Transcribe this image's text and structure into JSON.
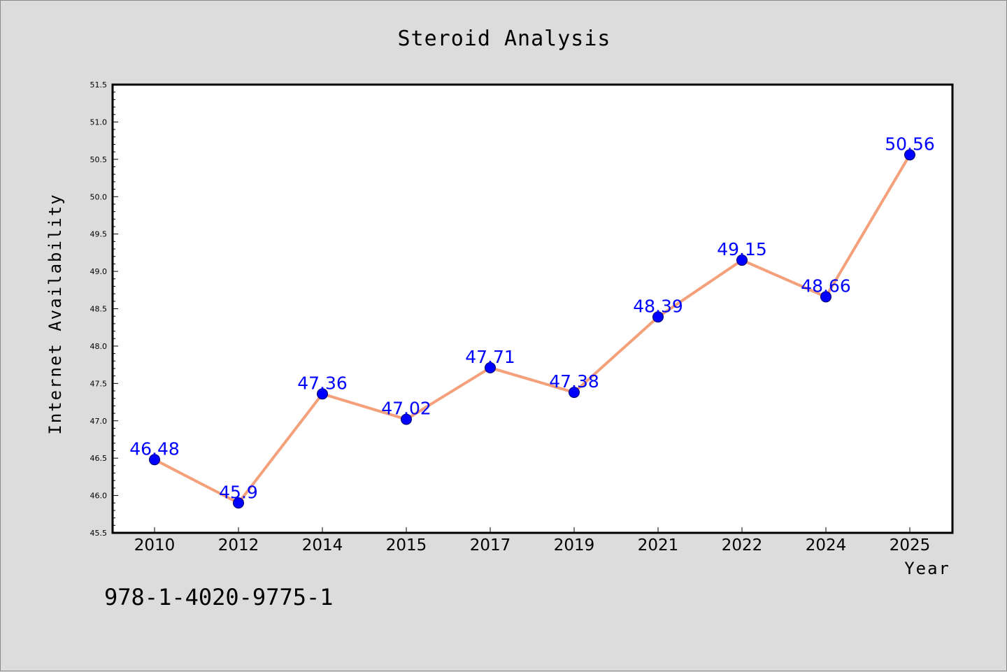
{
  "chart_data": {
    "type": "line",
    "title": "Steroid Analysis",
    "xlabel": "Year",
    "ylabel": "Internet Availability",
    "categories": [
      "2010",
      "2012",
      "2014",
      "2015",
      "2017",
      "2019",
      "2021",
      "2022",
      "2024",
      "2025"
    ],
    "series": [
      {
        "values": [
          46.48,
          45.9,
          47.36,
          47.02,
          47.71,
          47.38,
          48.39,
          49.15,
          48.66,
          50.56
        ],
        "data_labels": [
          "46.48",
          "45.9",
          "47.36",
          "47.02",
          "47.71",
          "47.38",
          "48.39",
          "49.15",
          "48.66",
          "50.56"
        ]
      }
    ],
    "ylim": [
      45.5,
      51.5
    ],
    "yticks": [
      "45.5",
      "46.0",
      "46.5",
      "47.0",
      "47.5",
      "48.0",
      "48.5",
      "49.0",
      "49.5",
      "50.0",
      "50.5",
      "51.0",
      "51.5"
    ],
    "grid": false,
    "colors": {
      "line": "#f4a07a",
      "marker": "#0000ff",
      "marker_edge": "#000066",
      "data_label": "#0000ff",
      "plot_bg": "#ffffff",
      "page_bg": "#dcdcdc"
    }
  },
  "caption": "978-1-4020-9775-1"
}
